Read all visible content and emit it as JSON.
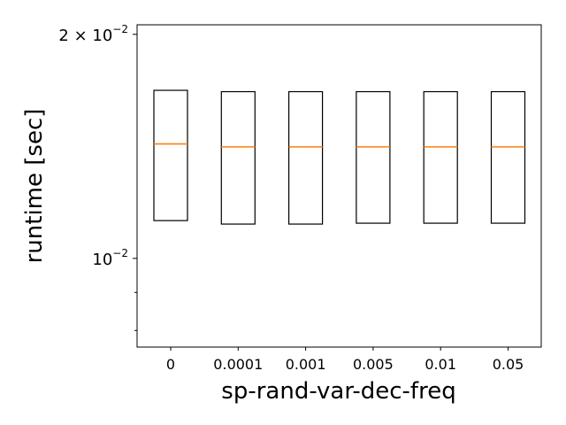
{
  "chart_data": {
    "type": "box",
    "xlabel": "sp-rand-var-dec-freq",
    "ylabel": "runtime [sec]",
    "yscale": "log",
    "ylim": [
      0.0076,
      0.0206
    ],
    "categories": [
      "0",
      "0.0001",
      "0.001",
      "0.005",
      "0.01",
      "0.05"
    ],
    "highlight_category": "0.005",
    "highlight_color": "#ff0000",
    "y_ticks": [
      {
        "value": 0.02,
        "base": "2 × 10",
        "exp": "−2"
      },
      {
        "value": 0.01,
        "base": "10",
        "exp": "−2"
      }
    ],
    "y_minor_ticks": [
      0.008,
      0.009
    ],
    "box_color": "#000000",
    "median_color": "#ff7f0e",
    "boxes": [
      {
        "category": "0",
        "q1": 0.01124,
        "median": 0.01425,
        "q3": 0.01682
      },
      {
        "category": "0.0001",
        "q1": 0.01112,
        "median": 0.01412,
        "q3": 0.01675
      },
      {
        "category": "0.001",
        "q1": 0.01112,
        "median": 0.01412,
        "q3": 0.01675
      },
      {
        "category": "0.005",
        "q1": 0.01115,
        "median": 0.01412,
        "q3": 0.01675
      },
      {
        "category": "0.01",
        "q1": 0.01115,
        "median": 0.01412,
        "q3": 0.01675
      },
      {
        "category": "0.05",
        "q1": 0.01115,
        "median": 0.01412,
        "q3": 0.01675
      }
    ]
  }
}
